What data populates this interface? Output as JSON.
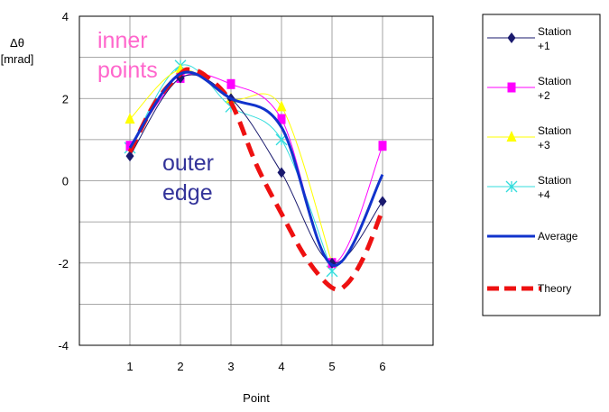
{
  "chart_data": {
    "type": "line",
    "xlabel": "Point",
    "ylabel": [
      "Δθ",
      "[mrad]"
    ],
    "categories": [
      "1",
      "2",
      "3",
      "4",
      "5",
      "6"
    ],
    "x_ticks": [
      1,
      2,
      3,
      4,
      5,
      6
    ],
    "y_ticks": [
      4,
      2,
      0,
      -2,
      -4
    ],
    "xlim": [
      0,
      7
    ],
    "ylim": [
      -4,
      4
    ],
    "grid": true,
    "legend_position": "right",
    "series": [
      {
        "name": "Station +1",
        "legend": [
          "Station",
          "+1"
        ],
        "marker": "diamond",
        "color": "#1a1a6e",
        "width": 1,
        "dash": "",
        "values": [
          0.6,
          2.5,
          2.0,
          0.2,
          -2.0,
          -0.5
        ]
      },
      {
        "name": "Station +2",
        "legend": [
          "Station",
          "+2"
        ],
        "marker": "square",
        "color": "#ff00ff",
        "width": 1,
        "dash": "",
        "values": [
          0.85,
          2.5,
          2.35,
          1.5,
          -2.0,
          0.85
        ]
      },
      {
        "name": "Station +3",
        "legend": [
          "Station",
          "+3"
        ],
        "marker": "triangle",
        "color": "#ffff00",
        "width": 1,
        "dash": "",
        "values": [
          1.5,
          2.7,
          2.0,
          1.8,
          -2.0,
          null
        ]
      },
      {
        "name": "Station +4",
        "legend": [
          "Station",
          "+4"
        ],
        "marker": "asterisk",
        "color": "#33dddd",
        "width": 1,
        "dash": "",
        "values": [
          0.8,
          2.8,
          1.8,
          1.0,
          -2.2,
          null
        ]
      },
      {
        "name": "Average",
        "legend": [
          "Average"
        ],
        "marker": "none",
        "color": "#1133cc",
        "width": 3,
        "dash": "",
        "values": [
          0.8,
          2.6,
          2.0,
          1.3,
          -2.05,
          0.15
        ]
      },
      {
        "name": "Theory",
        "legend": [
          "Theory"
        ],
        "marker": "none",
        "color": "#ee1111",
        "width": 5,
        "dash": "16,9",
        "values": [
          null,
          null,
          null,
          null,
          null,
          null
        ],
        "curve": [
          [
            1.0,
            0.7
          ],
          [
            1.5,
            1.9
          ],
          [
            2.0,
            2.6
          ],
          [
            2.2,
            2.7
          ],
          [
            2.5,
            2.55
          ],
          [
            3.0,
            1.9
          ],
          [
            3.5,
            0.4
          ],
          [
            4.0,
            -0.8
          ],
          [
            4.5,
            -1.9
          ],
          [
            5.0,
            -2.6
          ],
          [
            5.3,
            -2.5
          ],
          [
            5.65,
            -1.8
          ],
          [
            6.0,
            -0.7
          ]
        ]
      }
    ],
    "annotations": [
      {
        "text": "inner",
        "color": "#ff66cc"
      },
      {
        "text": "points",
        "color": "#ff66cc"
      },
      {
        "text": "outer",
        "color": "#333399"
      },
      {
        "text": "edge",
        "color": "#333399"
      }
    ]
  }
}
